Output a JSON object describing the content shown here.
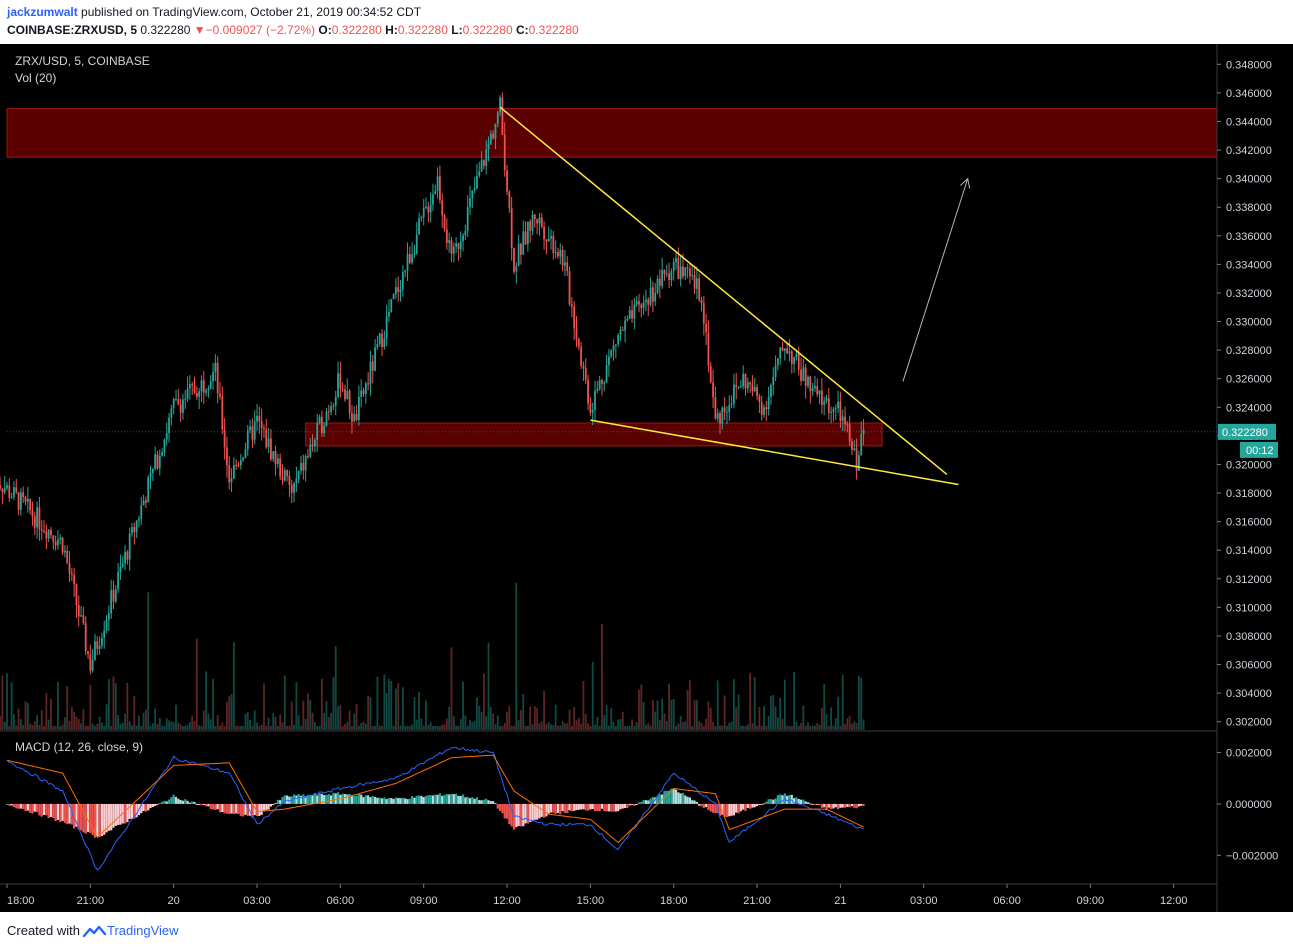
{
  "header": {
    "author": "jackzumwalt",
    "published_text": " published on TradingView.com, October 21, 2019 00:34:52 CDT",
    "symbol_text": "COINBASE:ZRXUSD, 5",
    "last_price": "0.322280",
    "change_arrow": "▼",
    "change_text": "−0.009027 (−2.72%)",
    "o_label": "O:",
    "o_value": "0.322280",
    "h_label": "H:",
    "h_value": "0.322280",
    "l_label": "L:",
    "l_value": "0.322280",
    "c_label": "C:",
    "c_value": "0.322280"
  },
  "legend": {
    "symbol": "ZRX/USD, 5, COINBASE",
    "volume": "Vol (20)",
    "macd": "MACD (12, 26, close, 9)"
  },
  "colors": {
    "up": "#26a69a",
    "down": "#ef5350",
    "zone": "#5a0000",
    "trendline": "#ffeb3b",
    "macd_line": "#2962ff",
    "signal_line": "#ff6d00",
    "background": "#000000"
  },
  "price_axis": {
    "ticks": [
      "0.348000",
      "0.346000",
      "0.344000",
      "0.342000",
      "0.340000",
      "0.338000",
      "0.336000",
      "0.334000",
      "0.332000",
      "0.330000",
      "0.328000",
      "0.326000",
      "0.324000",
      "0.322000",
      "0.320000",
      "0.318000",
      "0.316000",
      "0.314000",
      "0.312000",
      "0.310000",
      "0.308000",
      "0.306000",
      "0.304000",
      "0.302000"
    ],
    "current_price_label": "0.322280",
    "countdown_label": "00:12"
  },
  "macd_axis": {
    "ticks": [
      "0.002000",
      "0.000000",
      "−0.002000"
    ]
  },
  "time_axis": {
    "ticks": [
      "18:00",
      "21:00",
      "20",
      "03:00",
      "06:00",
      "09:00",
      "12:00",
      "15:00",
      "18:00",
      "21:00",
      "21",
      "03:00",
      "06:00",
      "09:00",
      "12:00"
    ]
  },
  "footer": {
    "created_with": "Created with",
    "brand": "TradingView"
  },
  "chart_data": {
    "type": "candlestick",
    "title": "ZRX/USD, 5, COINBASE",
    "ylim": [
      0.301,
      0.349
    ],
    "macd_ylim": [
      -0.003,
      0.0028
    ],
    "key_points": [
      {
        "time": "day19 17:30",
        "price": 0.3192
      },
      {
        "time": "day19 20:00",
        "price": 0.3145
      },
      {
        "time": "day19 21:00",
        "price": 0.306
      },
      {
        "time": "day20 00:00",
        "price": 0.324
      },
      {
        "time": "day20 01:30",
        "price": 0.3265
      },
      {
        "time": "day20 02:00",
        "price": 0.319
      },
      {
        "time": "day20 03:00",
        "price": 0.323
      },
      {
        "time": "day20 04:15",
        "price": 0.318
      },
      {
        "time": "day20 06:00",
        "price": 0.326
      },
      {
        "time": "day20 06:30",
        "price": 0.323
      },
      {
        "time": "day20 08:00",
        "price": 0.332
      },
      {
        "time": "day20 09:30",
        "price": 0.34
      },
      {
        "time": "day20 10:00",
        "price": 0.334
      },
      {
        "time": "day20 11:45",
        "price": 0.345
      },
      {
        "time": "day20 12:15",
        "price": 0.334
      },
      {
        "time": "day20 13:00",
        "price": 0.3375
      },
      {
        "time": "day20 14:00",
        "price": 0.3345
      },
      {
        "time": "day20 15:00",
        "price": 0.324
      },
      {
        "time": "day20 16:00",
        "price": 0.329
      },
      {
        "time": "day20 18:00",
        "price": 0.334
      },
      {
        "time": "day20 19:00",
        "price": 0.332
      },
      {
        "time": "day20 19:30",
        "price": 0.323
      },
      {
        "time": "day20 20:30",
        "price": 0.326
      },
      {
        "time": "day20 21:15",
        "price": 0.324
      },
      {
        "time": "day20 22:00",
        "price": 0.3285
      },
      {
        "time": "day20 23:00",
        "price": 0.325
      },
      {
        "time": "day21 00:00",
        "price": 0.3235
      },
      {
        "time": "day21 00:35",
        "price": 0.3202
      },
      {
        "time": "day21 00:50",
        "price": 0.3223
      }
    ],
    "resistance_zone": [
      0.3415,
      0.3449
    ],
    "support_zone": [
      0.3213,
      0.3229
    ],
    "trendlines": [
      {
        "from": [
          "day20 11:45",
          0.345
        ],
        "to": [
          "day21 03:50",
          0.3193
        ]
      },
      {
        "from": [
          "day20 15:00",
          0.3231
        ],
        "to": [
          "day21 04:15",
          0.3186
        ]
      }
    ],
    "projection_arrow": {
      "from": [
        "day21 02:15",
        0.3258
      ],
      "to": [
        "day21 04:35",
        0.34
      ]
    },
    "macd_key_points": [
      {
        "time": "day19 18:00",
        "macd": 0.0017,
        "signal": 0.0017
      },
      {
        "time": "day19 20:00",
        "macd": 0.0005,
        "signal": 0.0012
      },
      {
        "time": "day19 21:15",
        "macd": -0.0026,
        "signal": -0.0013
      },
      {
        "time": "day20 00:00",
        "macd": 0.0018,
        "signal": 0.0015
      },
      {
        "time": "day20 02:00",
        "macd": 0.0012,
        "signal": 0.0016
      },
      {
        "time": "day20 03:00",
        "macd": -0.0008,
        "signal": -0.0003
      },
      {
        "time": "day20 04:00",
        "macd": 0.0001,
        "signal": -0.0002
      },
      {
        "time": "day20 06:00",
        "macd": 0.0006,
        "signal": 0.0002
      },
      {
        "time": "day20 08:00",
        "macd": 0.001,
        "signal": 0.0008
      },
      {
        "time": "day20 10:00",
        "macd": 0.0022,
        "signal": 0.0018
      },
      {
        "time": "day20 11:30",
        "macd": 0.002,
        "signal": 0.0019
      },
      {
        "time": "day20 12:15",
        "macd": -0.0005,
        "signal": 0.0005
      },
      {
        "time": "day20 13:30",
        "macd": -0.0008,
        "signal": -0.0004
      },
      {
        "time": "day20 15:00",
        "macd": -0.0008,
        "signal": -0.0006
      },
      {
        "time": "day20 16:00",
        "macd": -0.0018,
        "signal": -0.0015
      },
      {
        "time": "day20 18:00",
        "macd": 0.0012,
        "signal": 0.0006
      },
      {
        "time": "day20 19:30",
        "macd": 0.0,
        "signal": 0.0004
      },
      {
        "time": "day20 20:00",
        "macd": -0.0015,
        "signal": -0.001
      },
      {
        "time": "day20 22:00",
        "macd": 0.0002,
        "signal": -0.0002
      },
      {
        "time": "day20 23:30",
        "macd": -0.0004,
        "signal": -0.0002
      },
      {
        "time": "day21 00:50",
        "macd": -0.001,
        "signal": -0.0009
      }
    ]
  }
}
